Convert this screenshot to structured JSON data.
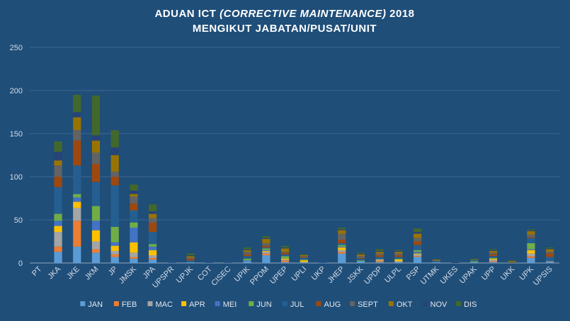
{
  "chart_data": {
    "type": "bar",
    "stacked": true,
    "title_parts": [
      "ADUAN ICT ",
      "(CORRECTIVE MAINTENANCE)",
      " 2018"
    ],
    "title_line2": "MENGIKUT  JABATAN/PUSAT/UNIT",
    "xlabel": "",
    "ylabel": "",
    "ylim": [
      0,
      250
    ],
    "yticks": [
      "0",
      "50",
      "100",
      "150",
      "200",
      "250"
    ],
    "grid": true,
    "legend_position": "bottom",
    "categories": [
      "PT",
      "JKA",
      "JKE",
      "JKM",
      "JP",
      "JMSK",
      "JPA",
      "UPSPR",
      "UPJK",
      "COT",
      "CISEC",
      "UPIK",
      "PPDM",
      "UPEP",
      "UPLI",
      "UKP",
      "JHEP",
      "JSKK",
      "UPDP",
      "ULPL",
      "PSP",
      "UTMK",
      "UKES",
      "UPAK",
      "UPP",
      "UKK",
      "UPK",
      "UPSIS"
    ],
    "series": [
      {
        "name": "JAN",
        "color": "#5b9bd5",
        "values": [
          0,
          13,
          19,
          12,
          7,
          5,
          4,
          0,
          1,
          0,
          0,
          2,
          9,
          1,
          1,
          0,
          11,
          2,
          1,
          1,
          7,
          1,
          0,
          1,
          1,
          0,
          6,
          1
        ]
      },
      {
        "name": "FEB",
        "color": "#ed7d31",
        "values": [
          0,
          6,
          30,
          4,
          3,
          2,
          2,
          0,
          0,
          0,
          0,
          0,
          2,
          2,
          0,
          0,
          2,
          0,
          1,
          0,
          1,
          0,
          0,
          0,
          1,
          0,
          2,
          0
        ]
      },
      {
        "name": "MAC",
        "color": "#a5a5a5",
        "values": [
          0,
          17,
          15,
          9,
          4,
          5,
          3,
          0,
          0,
          0,
          0,
          0,
          2,
          1,
          0,
          0,
          2,
          0,
          1,
          1,
          2,
          0,
          0,
          0,
          2,
          0,
          3,
          1
        ]
      },
      {
        "name": "APR",
        "color": "#ffc000",
        "values": [
          0,
          7,
          7,
          13,
          6,
          12,
          6,
          0,
          0,
          0,
          0,
          0,
          1,
          1,
          2,
          0,
          3,
          0,
          1,
          2,
          1,
          0,
          0,
          0,
          1,
          0,
          4,
          0
        ]
      },
      {
        "name": "MEI",
        "color": "#4472c4",
        "values": [
          0,
          6,
          5,
          11,
          4,
          17,
          4,
          0,
          0,
          0,
          0,
          1,
          1,
          0,
          0,
          0,
          1,
          0,
          1,
          0,
          2,
          0,
          0,
          0,
          0,
          0,
          1,
          0
        ]
      },
      {
        "name": "JUN",
        "color": "#70ad47",
        "values": [
          0,
          8,
          4,
          17,
          18,
          6,
          3,
          0,
          0,
          0,
          0,
          2,
          2,
          3,
          1,
          0,
          2,
          1,
          0,
          1,
          2,
          0,
          0,
          1,
          1,
          0,
          7,
          0
        ]
      },
      {
        "name": "JUL",
        "color": "#255e91",
        "values": [
          0,
          31,
          33,
          28,
          48,
          14,
          14,
          1,
          2,
          1,
          1,
          3,
          1,
          2,
          2,
          1,
          2,
          2,
          2,
          2,
          6,
          1,
          0,
          1,
          2,
          0,
          6,
          5
        ]
      },
      {
        "name": "AUG",
        "color": "#9e480e",
        "values": [
          0,
          12,
          29,
          21,
          10,
          8,
          11,
          0,
          2,
          0,
          0,
          2,
          2,
          2,
          1,
          0,
          4,
          1,
          2,
          2,
          4,
          0,
          0,
          0,
          2,
          0,
          1,
          4
        ]
      },
      {
        "name": "SEPT",
        "color": "#636363",
        "values": [
          0,
          13,
          12,
          13,
          6,
          8,
          5,
          0,
          1,
          0,
          0,
          3,
          3,
          1,
          1,
          0,
          7,
          2,
          2,
          2,
          4,
          1,
          0,
          1,
          2,
          1,
          3,
          2
        ]
      },
      {
        "name": "OKT",
        "color": "#997300",
        "values": [
          0,
          6,
          15,
          14,
          19,
          3,
          5,
          0,
          2,
          0,
          0,
          2,
          5,
          4,
          1,
          0,
          4,
          2,
          2,
          2,
          5,
          1,
          0,
          0,
          2,
          1,
          4,
          3
        ]
      },
      {
        "name": "NOV",
        "color": "#264478",
        "values": [
          0,
          10,
          6,
          6,
          9,
          4,
          3,
          0,
          1,
          0,
          0,
          1,
          1,
          1,
          0,
          0,
          1,
          1,
          1,
          1,
          2,
          0,
          1,
          0,
          1,
          0,
          1,
          1
        ]
      },
      {
        "name": "DIS",
        "color": "#43682b",
        "values": [
          0,
          12,
          20,
          46,
          20,
          7,
          8,
          0,
          2,
          0,
          0,
          2,
          2,
          2,
          1,
          0,
          2,
          1,
          2,
          1,
          4,
          0,
          0,
          1,
          1,
          1,
          1,
          1
        ]
      }
    ]
  }
}
